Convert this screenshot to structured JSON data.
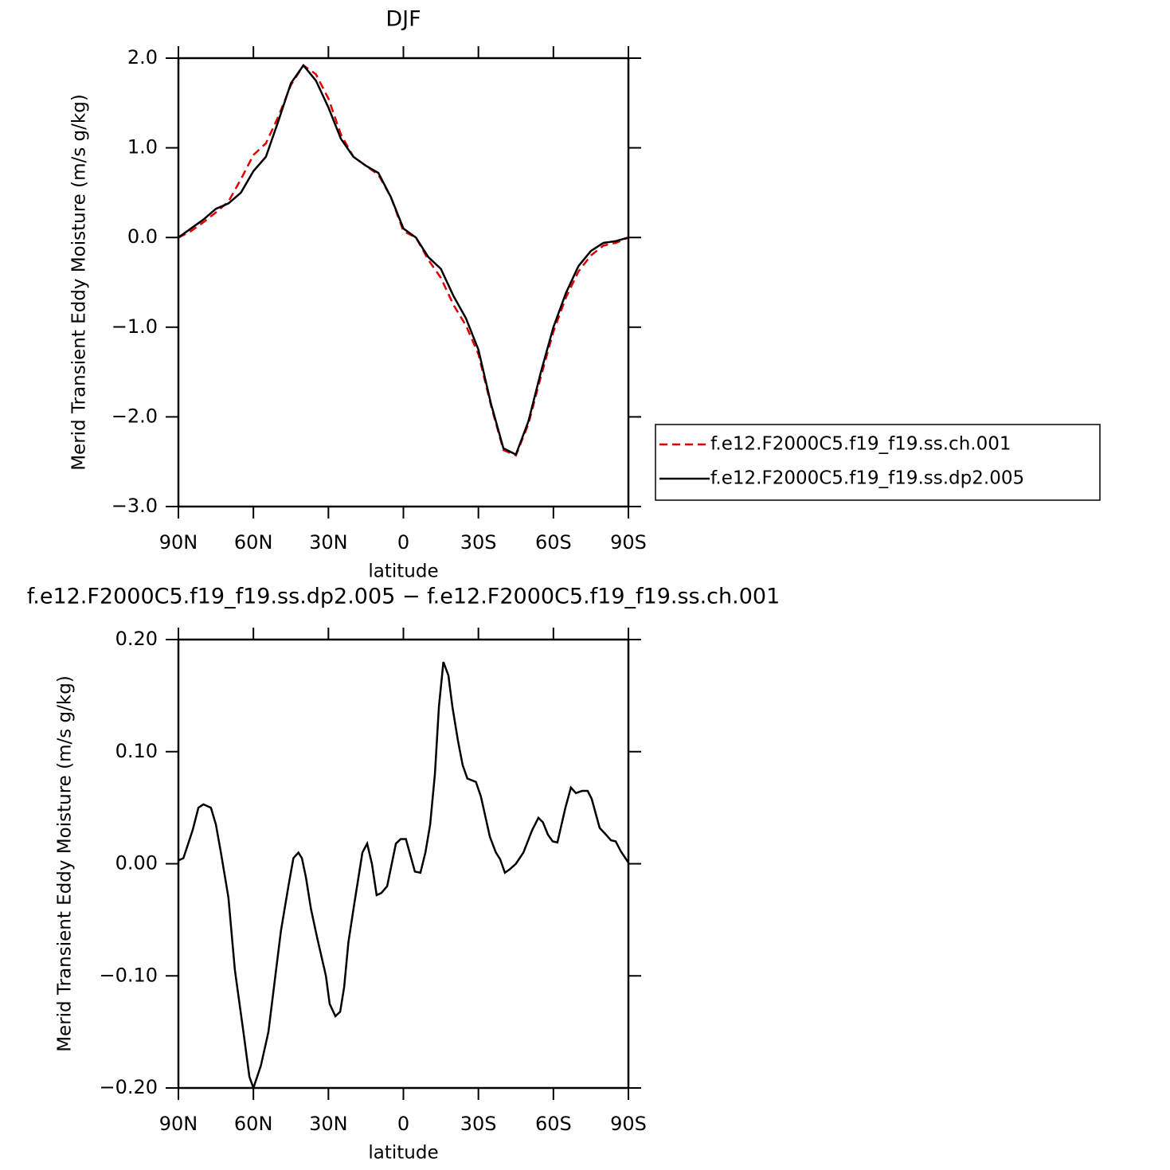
{
  "chart_data": [
    {
      "type": "line",
      "title": "DJF",
      "xlabel": "latitude",
      "ylabel": "Merid Transient Eddy Moisture (m/s g/kg)",
      "xlim": [
        90,
        -90
      ],
      "xticks": [
        {
          "value": 90,
          "label": "90N"
        },
        {
          "value": 60,
          "label": "60N"
        },
        {
          "value": 30,
          "label": "30N"
        },
        0,
        {
          "value": -30,
          "label": "30S"
        },
        {
          "value": -60,
          "label": "60S"
        },
        {
          "value": -90,
          "label": "90S"
        }
      ],
      "ylim": [
        -3,
        2
      ],
      "yticks": [
        {
          "value": -3,
          "label": "−3.0"
        },
        {
          "value": -2,
          "label": "−2.0"
        },
        {
          "value": -1,
          "label": "−1.0"
        },
        {
          "value": 0,
          "label": "0.0"
        },
        {
          "value": 1,
          "label": "1.0"
        },
        {
          "value": 2,
          "label": "2.0"
        }
      ],
      "legend": "right",
      "x": [
        90,
        85,
        80,
        75,
        70,
        65,
        60,
        55,
        50,
        45,
        40,
        35,
        30,
        25,
        20,
        15,
        10,
        5,
        0,
        -5,
        -10,
        -15,
        -20,
        -25,
        -30,
        -35,
        -40,
        -45,
        -50,
        -55,
        -60,
        -65,
        -70,
        -75,
        -80,
        -85,
        -90
      ],
      "series": [
        {
          "name": "f.e12.F2000C5.f19_f19.ss.ch.001",
          "color": "#e00000",
          "style": "dashed",
          "values": [
            0,
            0.07,
            0.17,
            0.28,
            0.4,
            0.65,
            0.92,
            1.05,
            1.35,
            1.7,
            1.92,
            1.82,
            1.55,
            1.15,
            0.9,
            0.8,
            0.7,
            0.45,
            0.07,
            0,
            -0.25,
            -0.45,
            -0.75,
            -0.98,
            -1.3,
            -1.87,
            -2.37,
            -2.43,
            -2.08,
            -1.55,
            -1.05,
            -0.67,
            -0.38,
            -0.2,
            -0.09,
            -0.06,
            0
          ]
        },
        {
          "name": "f.e12.F2000C5.f19_f19.ss.dp2.005",
          "color": "#000000",
          "style": "solid",
          "values": [
            0,
            0.1,
            0.2,
            0.32,
            0.38,
            0.5,
            0.74,
            0.9,
            1.3,
            1.72,
            1.92,
            1.75,
            1.45,
            1.1,
            0.9,
            0.8,
            0.72,
            0.45,
            0.1,
            0,
            -0.22,
            -0.35,
            -0.65,
            -0.9,
            -1.25,
            -1.85,
            -2.35,
            -2.42,
            -2.05,
            -1.5,
            -1,
            -0.62,
            -0.32,
            -0.15,
            -0.06,
            -0.04,
            0
          ]
        }
      ]
    },
    {
      "type": "line",
      "title": "f.e12.F2000C5.f19_f19.ss.dp2.005 − f.e12.F2000C5.f19_f19.ss.ch.001",
      "xlabel": "latitude",
      "ylabel": "Merid Transient Eddy Moisture (m/s g/kg)",
      "xlim": [
        90,
        -90
      ],
      "xticks": [
        {
          "value": 90,
          "label": "90N"
        },
        {
          "value": 60,
          "label": "60N"
        },
        {
          "value": 30,
          "label": "30N"
        },
        0,
        {
          "value": -30,
          "label": "30S"
        },
        {
          "value": -60,
          "label": "60S"
        },
        {
          "value": -90,
          "label": "90S"
        }
      ],
      "ylim": [
        -0.2,
        0.2
      ],
      "yticks": [
        {
          "value": -0.2,
          "label": "−0.20"
        },
        {
          "value": -0.1,
          "label": "−0.10"
        },
        {
          "value": 0,
          "label": "0.00"
        },
        {
          "value": 0.1,
          "label": "0.10"
        },
        {
          "value": 0.2,
          "label": "0.20"
        }
      ],
      "x": [
        90,
        88,
        84.3,
        82,
        80,
        77,
        75,
        73,
        70,
        67.4,
        64,
        61.6,
        60,
        57,
        54,
        49,
        46,
        44,
        42,
        40.6,
        39,
        37,
        34.6,
        31,
        29.5,
        27.2,
        25.3,
        23.7,
        22,
        19.6,
        16.4,
        14.5,
        12.6,
        10.7,
        8.8,
        6.5,
        3,
        1.1,
        -1,
        -4.6,
        -6.8,
        -8.8,
        -10.7,
        -12.6,
        -14.2,
        -16,
        -18,
        -19.6,
        -21.8,
        -23.7,
        -25.6,
        -29,
        -31,
        -34.6,
        -37,
        -38.7,
        -40.6,
        -42.5,
        -45,
        -48,
        -51.5,
        -54,
        -55.8,
        -57.8,
        -59.7,
        -61.6,
        -64.8,
        -67,
        -69,
        -71.5,
        -73.7,
        -75.3,
        -78.5,
        -81,
        -83,
        -84.9,
        -87,
        -90
      ],
      "series": [
        {
          "color": "#000000",
          "style": "solid",
          "values": [
            0.003,
            0.005,
            0.03,
            0.05,
            0.053,
            0.05,
            0.035,
            0.01,
            -0.03,
            -0.095,
            -0.15,
            -0.19,
            -0.2,
            -0.18,
            -0.15,
            -0.06,
            -0.02,
            0.005,
            0.01,
            0.005,
            -0.012,
            -0.04,
            -0.065,
            -0.1,
            -0.125,
            -0.136,
            -0.132,
            -0.11,
            -0.07,
            -0.035,
            0.01,
            0.018,
            0,
            -0.028,
            -0.026,
            -0.02,
            0.018,
            0.022,
            0.022,
            -0.007,
            -0.008,
            0.01,
            0.035,
            0.08,
            0.14,
            0.18,
            0.168,
            0.14,
            0.11,
            0.088,
            0.076,
            0.073,
            0.06,
            0.024,
            0.01,
            0.004,
            -0.008,
            -0.005,
            0,
            0.01,
            0.03,
            0.041,
            0.037,
            0.026,
            0.02,
            0.019,
            0.05,
            0.068,
            0.063,
            0.065,
            0.065,
            0.058,
            0.032,
            0.026,
            0.021,
            0.02,
            0.011,
            0.001
          ]
        }
      ]
    }
  ]
}
